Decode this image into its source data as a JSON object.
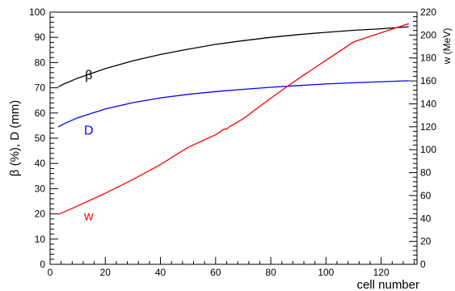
{
  "chart_data": {
    "type": "line",
    "title": "",
    "xlabel": "cell number",
    "ylabel_left": "β (%), D (mm)",
    "ylabel_right": "w (MeV)",
    "xlim": [
      0,
      133
    ],
    "ylim_left": [
      0,
      100
    ],
    "ylim_right": [
      0,
      220
    ],
    "grid": false,
    "x_ticks": [
      0,
      20,
      40,
      60,
      80,
      100,
      120
    ],
    "y_ticks_left": [
      0,
      10,
      20,
      30,
      40,
      50,
      60,
      70,
      80,
      90,
      100
    ],
    "y_ticks_right": [
      0,
      20,
      40,
      60,
      80,
      100,
      120,
      140,
      160,
      180,
      200,
      220
    ],
    "series": [
      {
        "name": "β",
        "axis": "left",
        "color": "#000000",
        "label_x": 14,
        "label_y": 75,
        "points": [
          [
            3,
            70.4
          ],
          [
            5,
            71.5
          ],
          [
            10,
            73.8
          ],
          [
            20,
            77.6
          ],
          [
            30,
            80.7
          ],
          [
            40,
            83.2
          ],
          [
            50,
            85.3
          ],
          [
            60,
            87.2
          ],
          [
            70,
            88.7
          ],
          [
            80,
            90.0
          ],
          [
            90,
            91.1
          ],
          [
            100,
            92.0
          ],
          [
            110,
            92.8
          ],
          [
            120,
            93.4
          ],
          [
            130,
            94.2
          ]
        ]
      },
      {
        "name": "D",
        "axis": "left",
        "color": "#0000ff",
        "label_x": 14,
        "label_y": 53,
        "points": [
          [
            3,
            54.5
          ],
          [
            5,
            55.7
          ],
          [
            10,
            58.1
          ],
          [
            20,
            61.6
          ],
          [
            30,
            64.1
          ],
          [
            40,
            66.0
          ],
          [
            50,
            67.4
          ],
          [
            60,
            68.5
          ],
          [
            70,
            69.4
          ],
          [
            80,
            70.2
          ],
          [
            90,
            70.9
          ],
          [
            100,
            71.5
          ],
          [
            110,
            72.0
          ],
          [
            120,
            72.4
          ],
          [
            130,
            72.8
          ]
        ]
      },
      {
        "name": "w",
        "axis": "right",
        "color": "#ff0000",
        "label_x": 14,
        "label_y": 42,
        "points": [
          [
            3,
            43.5
          ],
          [
            10,
            51
          ],
          [
            20,
            62
          ],
          [
            30,
            74
          ],
          [
            40,
            87
          ],
          [
            50,
            102
          ],
          [
            60,
            113
          ],
          [
            63,
            118
          ],
          [
            64,
            118
          ],
          [
            65,
            120
          ],
          [
            70,
            127
          ],
          [
            80,
            145
          ],
          [
            90,
            162
          ],
          [
            100,
            178
          ],
          [
            110,
            194
          ],
          [
            120,
            202
          ],
          [
            130,
            210
          ]
        ]
      }
    ]
  }
}
